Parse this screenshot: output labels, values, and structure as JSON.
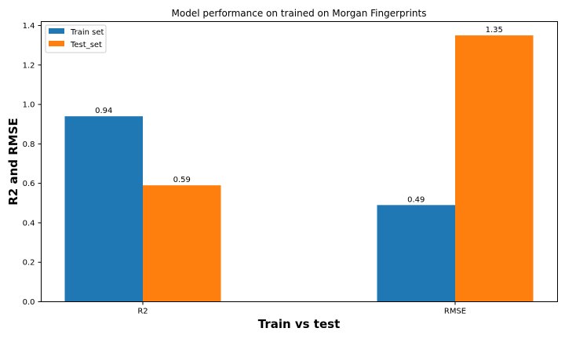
{
  "chart_data": {
    "type": "bar",
    "title": "Model performance on trained on Morgan Fingerprints",
    "xlabel": "Train vs test",
    "ylabel": "R2 and RMSE",
    "categories": [
      "R2",
      "RMSE"
    ],
    "series": [
      {
        "name": "Train set",
        "values": [
          0.94,
          0.49
        ],
        "labels": [
          "0.94",
          "0.49"
        ],
        "color": "#1f77b4"
      },
      {
        "name": "Test_set",
        "values": [
          0.59,
          1.35
        ],
        "labels": [
          "0.59",
          "1.35"
        ],
        "color": "#ff7f0e"
      }
    ],
    "ylim": [
      0,
      1.42
    ],
    "yticks": [
      "0.0",
      "0.2",
      "0.4",
      "0.6",
      "0.8",
      "1.0",
      "1.2",
      "1.4"
    ],
    "legend_position": "top-left",
    "grid": false
  }
}
